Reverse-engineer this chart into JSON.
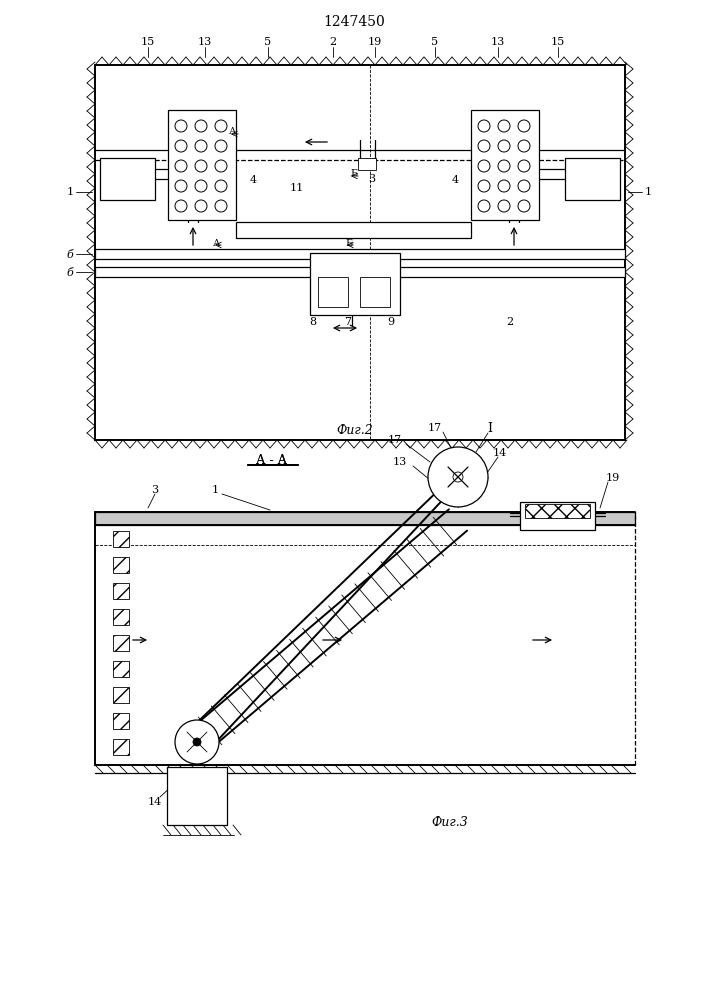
{
  "title": "1247450",
  "fig2_label": "Фиг.2",
  "fig3_label": "Фиг.3",
  "section_label": "А - А",
  "bg_color": "#ffffff"
}
